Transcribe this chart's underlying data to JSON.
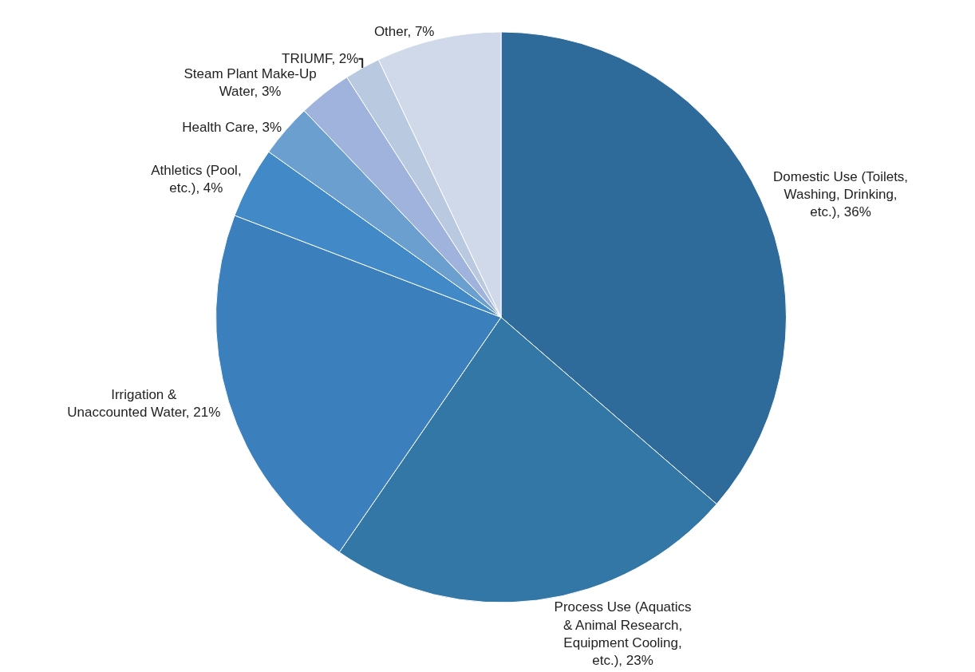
{
  "chart_data": {
    "type": "pie",
    "categories": [
      "Domestic Use (Toilets, Washing, Drinking, etc.)",
      "Process Use (Aquatics & Animal Research, Equipment Cooling, etc.)",
      "Irrigation & Unaccounted Water",
      "Athletics (Pool, etc.)",
      "Health Care",
      "Steam Plant Make-Up Water",
      "TRIUMF",
      "Other"
    ],
    "values": [
      36,
      23,
      21,
      4,
      3,
      3,
      2,
      7
    ],
    "value_labels": [
      "36%",
      "23%",
      "21%",
      "4%",
      "3%",
      "3%",
      "2%",
      "7%"
    ],
    "colors": [
      "#2e6a9a",
      "#3277a6",
      "#3b80bd",
      "#4289c7",
      "#6a9fcf",
      "#9fb3dd",
      "#b8c9e0",
      "#d0d9ea"
    ],
    "legend": false
  }
}
